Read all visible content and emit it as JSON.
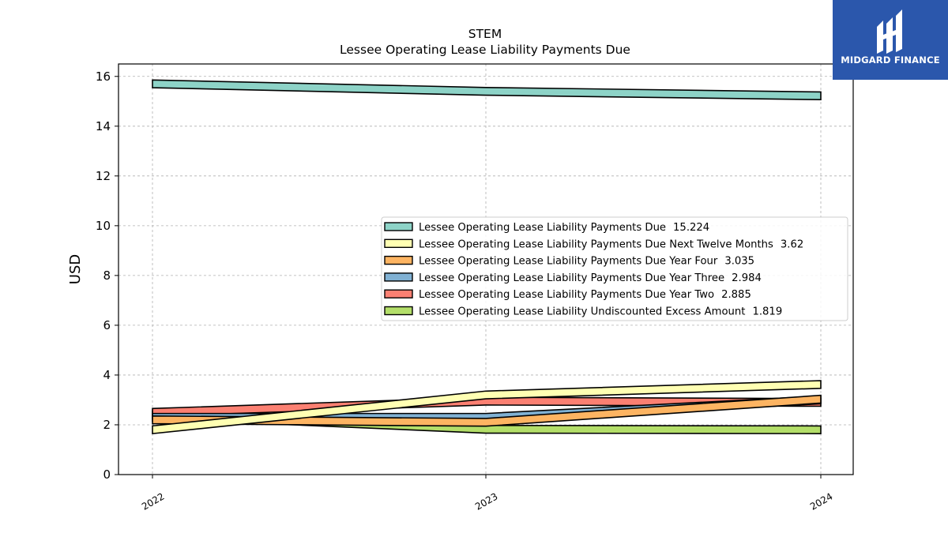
{
  "brand": {
    "name": "MIDGARD FINANCE",
    "logo_icon": "midgard-finance-logo-icon",
    "color": "#2b57ac"
  },
  "chart_data": {
    "type": "area",
    "title": "STEM",
    "subtitle": "Lessee Operating Lease Liability Payments Due",
    "ylabel": "USD",
    "xlabel": "",
    "categories": [
      "2022",
      "2023",
      "2024"
    ],
    "ylim": [
      0,
      16.5
    ],
    "yticks": [
      "0",
      "2",
      "4",
      "6",
      "8",
      "10",
      "12",
      "14",
      "16"
    ],
    "grid": true,
    "legend_position": "center-right",
    "series": [
      {
        "name": "Lessee Operating Lease Liability Payments Due",
        "legend_value": "15.224",
        "color": "#8dd3c7",
        "values": [
          15.7,
          15.4,
          15.22
        ]
      },
      {
        "name": "Lessee Operating Lease Liability Payments Due Next Twelve Months",
        "legend_value": "3.62",
        "color": "#ffffb3",
        "values": [
          1.8,
          3.2,
          3.62
        ]
      },
      {
        "name": "Lessee Operating Lease Liability Payments Due Year Four",
        "legend_value": "3.035",
        "color": "#fdb462",
        "values": [
          2.2,
          2.1,
          3.03
        ]
      },
      {
        "name": "Lessee Operating Lease Liability Payments Due Year Three",
        "legend_value": "2.984",
        "color": "#80b1d3",
        "values": [
          2.3,
          2.3,
          3.0
        ]
      },
      {
        "name": "Lessee Operating Lease Liability Payments Due Year Two",
        "legend_value": "2.885",
        "color": "#fb8072",
        "values": [
          2.5,
          2.95,
          2.9
        ]
      },
      {
        "name": "Lessee Operating Lease Liability Undiscounted Excess Amount",
        "legend_value": "1.819",
        "color": "#b3de69",
        "values": [
          2.4,
          1.82,
          1.8
        ]
      }
    ]
  }
}
